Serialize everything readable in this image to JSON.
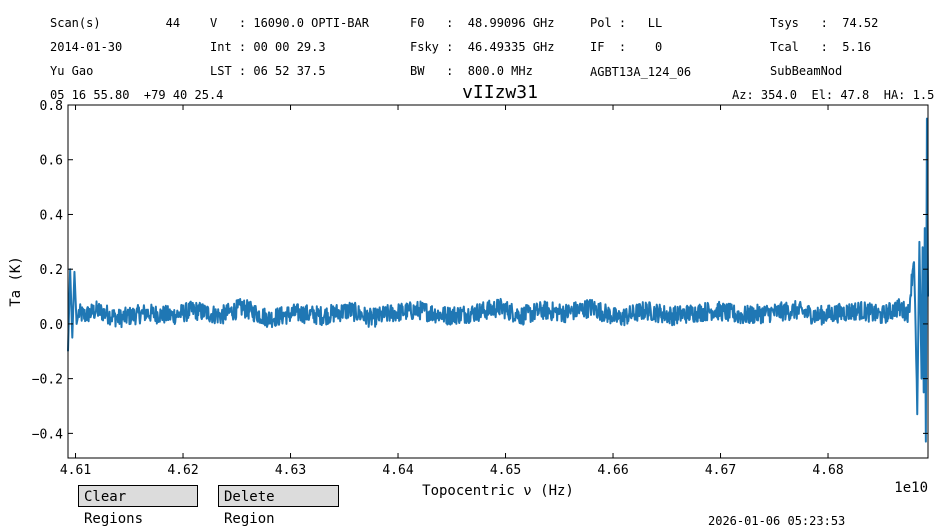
{
  "header": {
    "row1": {
      "scan": "Scan(s)         44",
      "velocity": "V   : 16090.0 OPTI-BAR",
      "f0": "F0   :  48.99096 GHz",
      "pol": "Pol :   LL",
      "tsys": "Tsys   :  74.52"
    },
    "row2": {
      "date": "2014-01-30",
      "int": "Int : 00 00 29.3",
      "fsky": "Fsky :  46.49335 GHz",
      "if": "IF  :    0",
      "tcal": "Tcal   :  5.16"
    },
    "row3": {
      "observer": "Yu Gao",
      "lst": "LST : 06 52 37.5",
      "bw": "BW   :  800.0 MHz",
      "project": "AGBT13A_124_06",
      "proc": "SubBeamNod"
    },
    "row4": {
      "coords": "05 16 55.80  +79 40 25.4",
      "azel": "Az: 354.0  El: 47.8  HA: 1.5"
    }
  },
  "buttons": {
    "clear": "Clear Regions",
    "delete": "Delete Region"
  },
  "timestamp": "2026-01-06 05:23:53",
  "chart_data": {
    "type": "line",
    "title": "vIIzw31",
    "xlabel": "Topocentric ν (Hz)",
    "ylabel": "Ta (K)",
    "x_offset_label": "1e10",
    "xlim": [
      4.6093,
      4.6893
    ],
    "ylim": [
      -0.49,
      0.8
    ],
    "xticks": [
      4.61,
      4.62,
      4.63,
      4.64,
      4.65,
      4.66,
      4.67,
      4.68
    ],
    "xtick_labels": [
      "4.61",
      "4.62",
      "4.63",
      "4.64",
      "4.65",
      "4.66",
      "4.67",
      "4.68"
    ],
    "yticks": [
      -0.4,
      -0.2,
      0.0,
      0.2,
      0.4,
      0.6,
      0.8
    ],
    "ytick_labels": [
      "−0.4",
      "−0.2",
      "0.0",
      "0.2",
      "0.4",
      "0.6",
      "0.8"
    ],
    "line_color": "#1f77b4",
    "series": [
      {
        "x": [
          4.6093,
          4.6095,
          4.6097,
          4.6099,
          4.6101,
          4.6103,
          4.6108,
          4.612,
          4.614,
          4.6165,
          4.619,
          4.621,
          4.6235,
          4.6255,
          4.628,
          4.6305,
          4.633,
          4.6355,
          4.6375,
          4.6395,
          4.642,
          4.6445,
          4.647,
          4.6495,
          4.6515,
          4.6535,
          4.6555,
          4.658,
          4.6605,
          4.663,
          4.6655,
          4.6675,
          4.6695,
          4.672,
          4.6745,
          4.677,
          4.679,
          4.681,
          4.683,
          4.685,
          4.6865,
          4.6875,
          4.688,
          4.6883,
          4.6885,
          4.6887,
          4.6888,
          4.6889,
          4.689,
          4.6891,
          4.6892,
          4.6893
        ],
        "y": [
          -0.1,
          0.2,
          -0.05,
          0.19,
          0.0,
          0.04,
          0.03,
          0.05,
          0.02,
          0.04,
          0.03,
          0.05,
          0.03,
          0.06,
          0.02,
          0.04,
          0.03,
          0.05,
          0.02,
          0.04,
          0.05,
          0.03,
          0.04,
          0.06,
          0.03,
          0.05,
          0.04,
          0.06,
          0.02,
          0.05,
          0.03,
          0.04,
          0.05,
          0.03,
          0.04,
          0.05,
          0.03,
          0.04,
          0.05,
          0.03,
          0.06,
          0.04,
          0.25,
          -0.33,
          0.3,
          -0.2,
          0.28,
          -0.25,
          0.35,
          -0.43,
          0.75,
          0.1
        ]
      }
    ]
  }
}
